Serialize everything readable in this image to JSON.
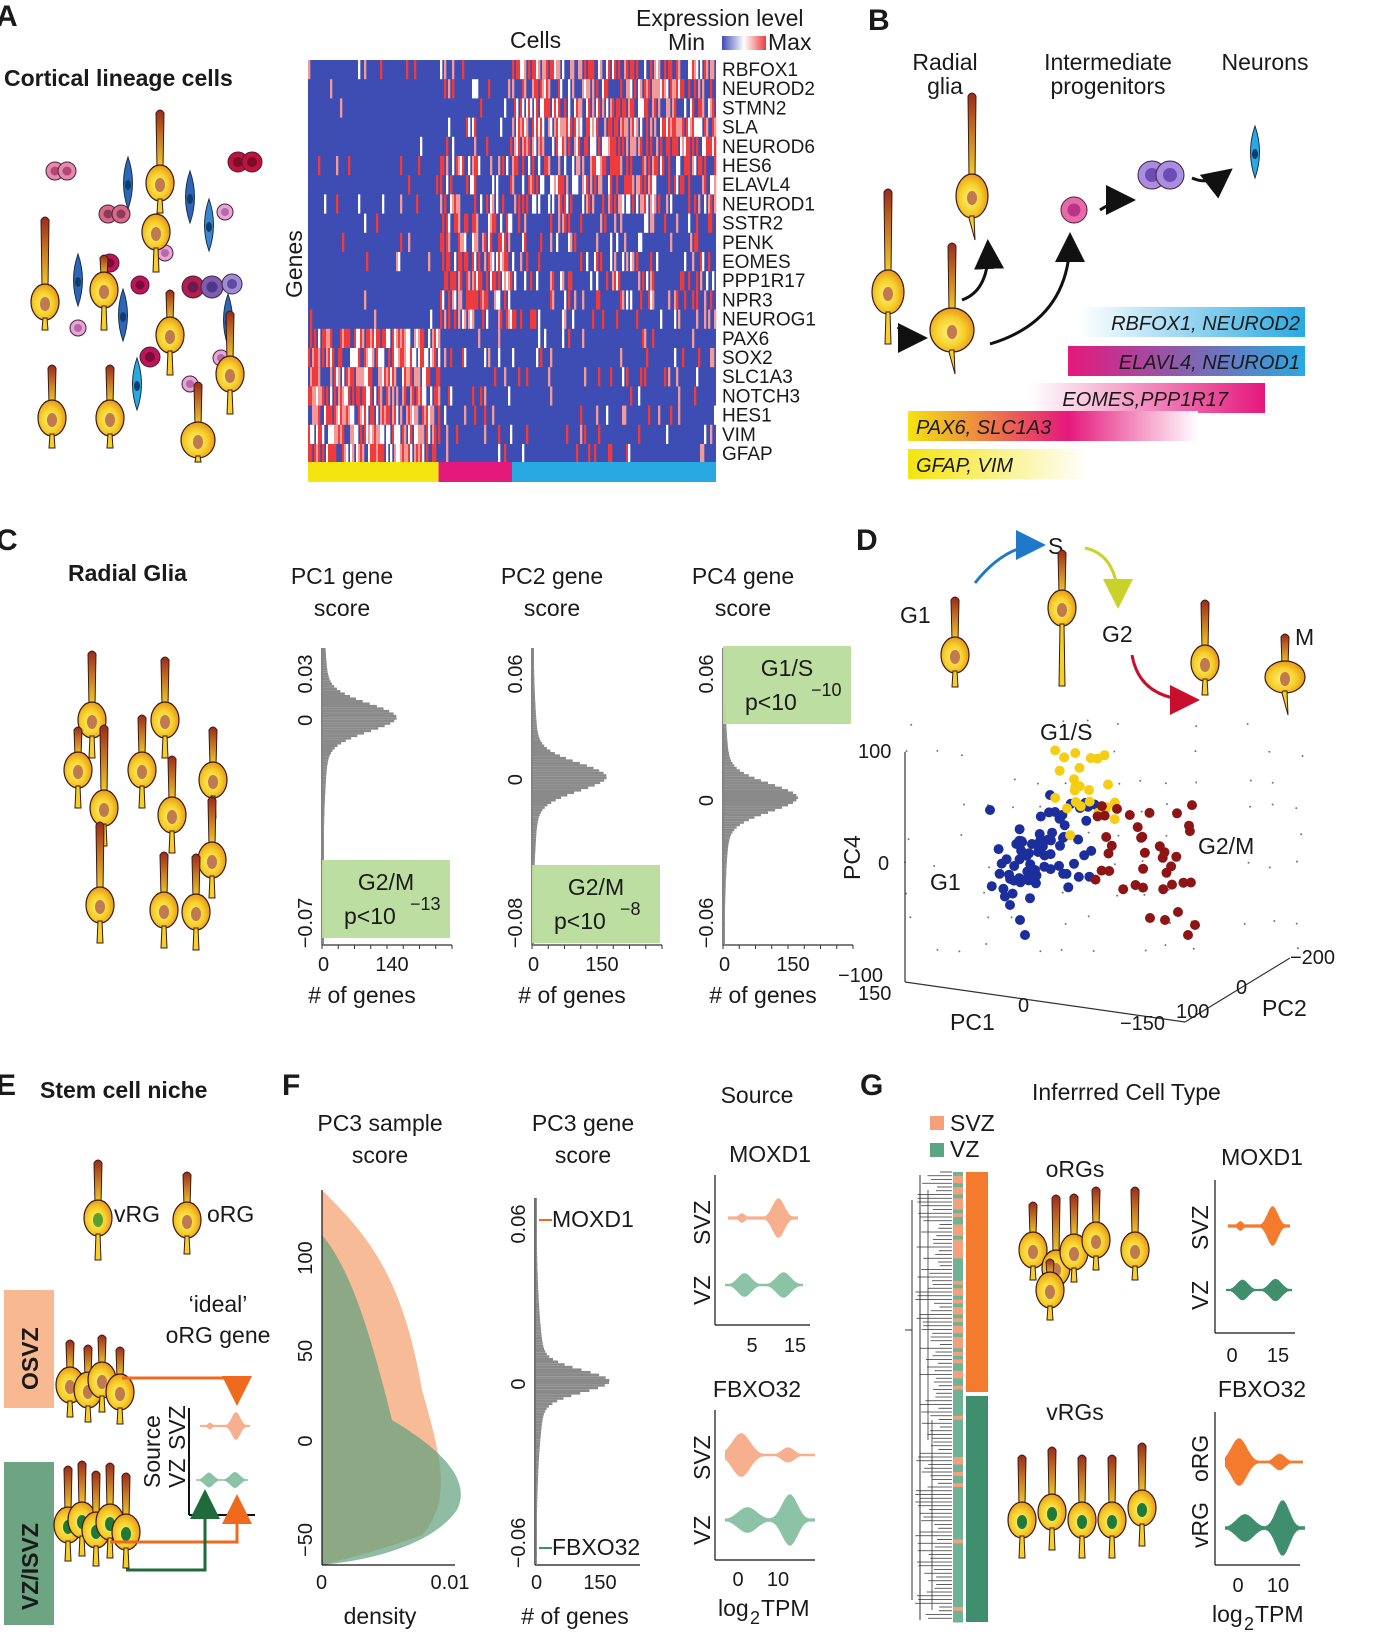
{
  "panels": {
    "A": {
      "label": "A",
      "title": "Cortical lineage cells",
      "cells_label": "Cells",
      "genes_label": "Genes",
      "legend": {
        "title": "Expression level",
        "min": "Min",
        "max": "Max"
      },
      "genes": [
        "RBFOX1",
        "NEUROD2",
        "STMN2",
        "SLA",
        "NEUROD6",
        "HES6",
        "ELAVL4",
        "NEUROD1",
        "SSTR2",
        "PENK",
        "EOMES",
        "PPP1R17",
        "NPR3",
        "NEUROG1",
        "PAX6",
        "SOX2",
        "SLC1A3",
        "NOTCH3",
        "HES1",
        "VIM",
        "GFAP"
      ],
      "gene_group_high": [
        4,
        4,
        4,
        4,
        4,
        3,
        3,
        3,
        2,
        2,
        2,
        2,
        2,
        2,
        1,
        1,
        1,
        1,
        1,
        1,
        1
      ],
      "bar_colors": [
        "#f4e410",
        "#e5187c",
        "#29a9e1"
      ],
      "bar_fractions": [
        0.32,
        0.18,
        0.5
      ]
    },
    "B": {
      "label": "B",
      "stages": [
        "Radial glia",
        "Intermediate progenitors",
        "Neurons"
      ],
      "markers": [
        {
          "text": "RBFOX1, NEUROD2",
          "from": "#ffffff",
          "to": "#29a9e1"
        },
        {
          "text": "ELAVL4, NEUROD1",
          "from": "#e5187c",
          "to": "#29a9e1"
        },
        {
          "text": "EOMES,PPP1R17",
          "from": "#ffffff",
          "to": "#e5187c"
        },
        {
          "text": "PAX6, SLC1A3",
          "from": "#f4e410",
          "to": "#e5187c"
        },
        {
          "text": "GFAP, VIM",
          "from": "#f4e410",
          "to": "#ffffff"
        }
      ]
    },
    "C": {
      "label": "C",
      "title": "Radial Glia",
      "hists": [
        {
          "title1": "PC1 gene",
          "title2": "score",
          "ytop": "0.03",
          "ymid": "0",
          "ybot": "−0.07",
          "xmax": "140",
          "phase": "G2/M",
          "pval": "p<10",
          "exp": "−13",
          "peak_frac": 0.23
        },
        {
          "title1": "PC2 gene",
          "title2": "score",
          "ytop": "0.06",
          "ymid": "0",
          "ybot": "−0.08",
          "xmax": "150",
          "phase": "G2/M",
          "pval": "p<10",
          "exp": "−8",
          "peak_frac": 0.43
        },
        {
          "title1": "PC4 gene",
          "title2": "score",
          "ytop": "0.06",
          "ymid": "0",
          "ybot": "−0.06",
          "xmax": "150",
          "phase": "G1/S",
          "pval": "p<10",
          "exp": "−10",
          "peak_frac": 0.5
        }
      ],
      "xlabel": "# of genes"
    },
    "D": {
      "label": "D",
      "phases": [
        "G1",
        "S",
        "G2",
        "M"
      ],
      "clusters": [
        "G1/S",
        "G1",
        "G2/M"
      ],
      "axes": {
        "y": "PC4",
        "x1": "PC1",
        "x2": "PC2"
      },
      "y_ticks": [
        "100",
        "0",
        "−100"
      ],
      "pc1_ticks": [
        "150",
        "0",
        "−150"
      ],
      "pc2_ticks": [
        "100",
        "0",
        "−200"
      ],
      "colors": {
        "G1": "#1b2e9c",
        "G1S": "#f5cd12",
        "G2M": "#8e1515"
      }
    },
    "E": {
      "label": "E",
      "title": "Stem cell niche",
      "vrg": "vRG",
      "org": "oRG",
      "ideal1": "‘ideal’",
      "ideal2": "oRG gene",
      "osvz": "OSVZ",
      "vzisvz": "VZ/ISVZ",
      "source": "Source",
      "svz": "SVZ",
      "vz": "VZ"
    },
    "F": {
      "label": "F",
      "density_title1": "PC3 sample",
      "density_title2": "score",
      "density_y": [
        "100",
        "50",
        "0",
        "−50"
      ],
      "density_x": [
        "0",
        "0.01"
      ],
      "density_xlabel": "density",
      "gene_title1": "PC3 gene",
      "gene_title2": "score",
      "gene_ytop": "0.06",
      "gene_ymid": "0",
      "gene_ybot": "−0.06",
      "gene_x": [
        "0",
        "150"
      ],
      "gene_xlabel": "# of genes",
      "top_gene": "MOXD1",
      "bottom_gene": "FBXO32",
      "source_title": "Source",
      "violin1_title": "MOXD1",
      "violin1_x": [
        "5",
        "15"
      ],
      "violin2_title": "FBXO32",
      "violin2_x": [
        "0",
        "10"
      ],
      "svz": "SVZ",
      "vz": "VZ",
      "log_label": "log",
      "log_sub": "2",
      "log_unit": "TPM"
    },
    "G": {
      "label": "G",
      "title": "Inferrred Cell Type",
      "legend": [
        {
          "name": "SVZ",
          "color": "#f4a07c"
        },
        {
          "name": "VZ",
          "color": "#5aa584"
        }
      ],
      "orgs": "oRGs",
      "vrgs": "vRGs",
      "violin1_title": "MOXD1",
      "violin1_x": [
        "0",
        "15"
      ],
      "violin2_title": "FBXO32",
      "violin2_x": [
        "0",
        "10"
      ],
      "svz": "SVZ",
      "vz": "VZ",
      "org": "oRG",
      "vrg": "vRG",
      "log_label": "log",
      "log_sub": "2",
      "log_unit": "TPM"
    }
  },
  "colors": {
    "orange": "#f47a2e",
    "salmon": "#f6b08e",
    "teal": "#4f9b76",
    "tealLight": "#8cc3a6",
    "heatBlue": "#3d4db3",
    "heatRed": "#ef3b3b",
    "hist": "#8a8a8a",
    "green": "#b9dc9c"
  }
}
